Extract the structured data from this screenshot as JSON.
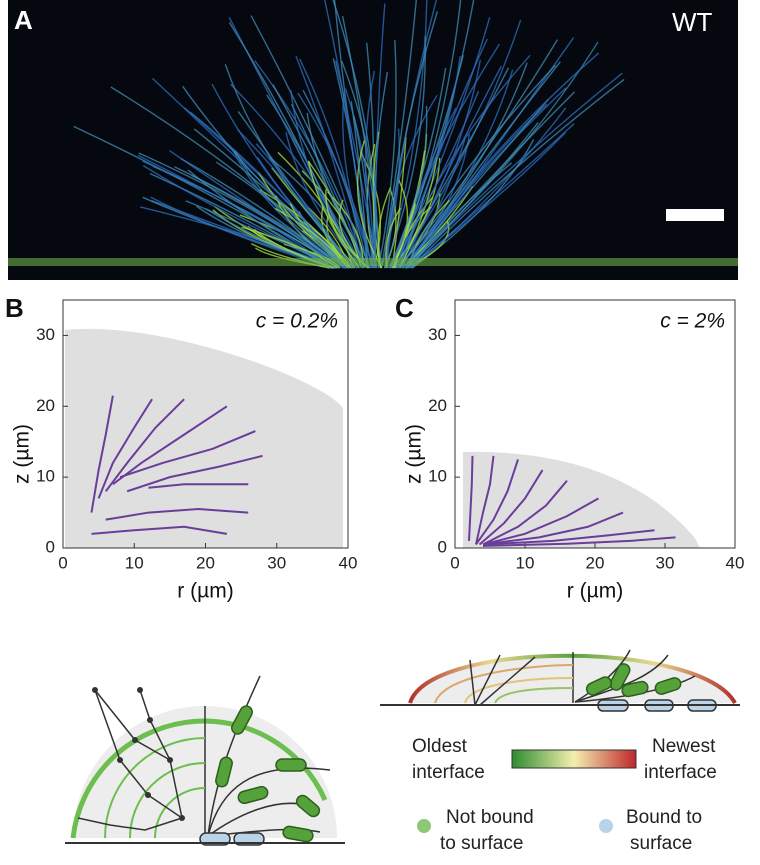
{
  "panel_a": {
    "label": "A",
    "tag": "WT"
  },
  "chart_data": [
    {
      "type": "line",
      "panel": "B",
      "annotation": "c = 0.2%",
      "xlabel": "r (µm)",
      "ylabel": "z (µm)",
      "xlim": [
        0,
        40
      ],
      "ylim": [
        0,
        35
      ],
      "xticks": [
        0,
        10,
        20,
        30,
        40
      ],
      "yticks": [
        0,
        10,
        20,
        30
      ],
      "series": [
        {
          "color": "#6a3d9a",
          "x": [
            4,
            5,
            6,
            7
          ],
          "values": [
            5,
            11,
            16,
            21.5
          ]
        },
        {
          "color": "#6a3d9a",
          "x": [
            5,
            7,
            10,
            12.5
          ],
          "values": [
            7,
            12,
            17,
            21
          ]
        },
        {
          "color": "#6a3d9a",
          "x": [
            6,
            9,
            13,
            17
          ],
          "values": [
            8,
            12,
            17,
            21
          ]
        },
        {
          "color": "#6a3d9a",
          "x": [
            7,
            11,
            17,
            23
          ],
          "values": [
            9,
            12,
            16,
            20
          ]
        },
        {
          "color": "#6a3d9a",
          "x": [
            8,
            14,
            21,
            27
          ],
          "values": [
            10,
            12,
            14,
            16.5
          ]
        },
        {
          "color": "#6a3d9a",
          "x": [
            9,
            15,
            22,
            28
          ],
          "values": [
            8,
            10,
            11.5,
            13
          ]
        },
        {
          "color": "#6a3d9a",
          "x": [
            12,
            17,
            22,
            26
          ],
          "values": [
            8.5,
            9,
            9,
            9
          ]
        },
        {
          "color": "#6a3d9a",
          "x": [
            6,
            12,
            19,
            26
          ],
          "values": [
            4,
            5,
            5.5,
            5
          ]
        },
        {
          "color": "#6a3d9a",
          "x": [
            4,
            10,
            17,
            23
          ],
          "values": [
            2,
            2.5,
            3,
            2
          ]
        }
      ]
    },
    {
      "type": "line",
      "panel": "C",
      "annotation": "c = 2%",
      "xlabel": "r (µm)",
      "ylabel": "z (µm)",
      "xlim": [
        0,
        40
      ],
      "ylim": [
        0,
        35
      ],
      "xticks": [
        0,
        10,
        20,
        30,
        40
      ],
      "yticks": [
        0,
        10,
        20,
        30
      ],
      "series": [
        {
          "color": "#6a3d9a",
          "x": [
            2,
            2.2,
            2.4,
            2.5
          ],
          "values": [
            1,
            5,
            9,
            13
          ]
        },
        {
          "color": "#6a3d9a",
          "x": [
            3,
            4,
            5,
            5.5
          ],
          "values": [
            0.5,
            5,
            9,
            13
          ]
        },
        {
          "color": "#6a3d9a",
          "x": [
            3,
            5.5,
            7.5,
            9
          ],
          "values": [
            0.5,
            4,
            8,
            12.5
          ]
        },
        {
          "color": "#6a3d9a",
          "x": [
            3.5,
            7,
            10,
            12.5
          ],
          "values": [
            0.5,
            3.5,
            7,
            11
          ]
        },
        {
          "color": "#6a3d9a",
          "x": [
            4,
            9,
            13,
            16
          ],
          "values": [
            0.5,
            3,
            6,
            9.5
          ]
        },
        {
          "color": "#6a3d9a",
          "x": [
            4,
            10,
            16,
            20.5
          ],
          "values": [
            0.5,
            2,
            4.5,
            7
          ]
        },
        {
          "color": "#6a3d9a",
          "x": [
            4,
            12,
            19,
            24
          ],
          "values": [
            0.5,
            1.5,
            3,
            5
          ]
        },
        {
          "color": "#6a3d9a",
          "x": [
            4,
            14,
            22,
            28.5
          ],
          "values": [
            0.5,
            1,
            1.8,
            2.5
          ]
        },
        {
          "color": "#6a3d9a",
          "x": [
            4,
            16,
            25,
            31.5
          ],
          "values": [
            0.3,
            0.6,
            1,
            1.5
          ]
        }
      ]
    }
  ],
  "legend": {
    "oldest": [
      "Oldest",
      "interface"
    ],
    "newest": [
      "Newest",
      "interface"
    ],
    "not_bound": [
      "Not bound",
      "to surface"
    ],
    "bound": [
      "Bound to",
      "surface"
    ]
  }
}
